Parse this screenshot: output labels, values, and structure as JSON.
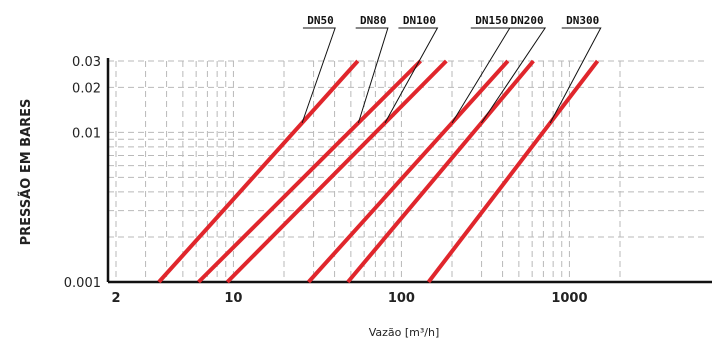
{
  "chart_data": {
    "type": "line",
    "xscale": "log",
    "yscale": "log",
    "xlim": [
      2,
      2500
    ],
    "ylim": [
      0.001,
      0.03
    ],
    "grid": true,
    "xlabel": "Vazão [m³/h]",
    "ylabel": "PRESSÃO EM BARES",
    "xticks": [
      {
        "value": 2,
        "label": "2"
      },
      {
        "value": 10,
        "label": "10"
      },
      {
        "value": 100,
        "label": "100"
      },
      {
        "value": 1000,
        "label": "1000"
      }
    ],
    "yticks": [
      {
        "value": 0.001,
        "label": "0.001"
      },
      {
        "value": 0.01,
        "label": "0.01"
      },
      {
        "value": 0.02,
        "label": "0.02"
      },
      {
        "value": 0.03,
        "label": "0.03"
      }
    ],
    "series_color": "#e0262c",
    "series": [
      {
        "name": "DN50",
        "x": [
          3.6,
          55
        ],
        "y": [
          0.001,
          0.03
        ],
        "label_x": 33
      },
      {
        "name": "DN80",
        "x": [
          6.2,
          130
        ],
        "y": [
          0.001,
          0.03
        ],
        "label_x": 68
      },
      {
        "name": "DN100",
        "x": [
          9.2,
          185
        ],
        "y": [
          0.001,
          0.03
        ],
        "label_x": 128
      },
      {
        "name": "DN150",
        "x": [
          28,
          430
        ],
        "y": [
          0.001,
          0.03
        ],
        "label_x": 345
      },
      {
        "name": "DN200",
        "x": [
          48,
          610
        ],
        "y": [
          0.001,
          0.03
        ],
        "label_x": 560
      },
      {
        "name": "DN300",
        "x": [
          145,
          1470
        ],
        "y": [
          0.001,
          0.03
        ],
        "label_x": 1200
      }
    ]
  }
}
